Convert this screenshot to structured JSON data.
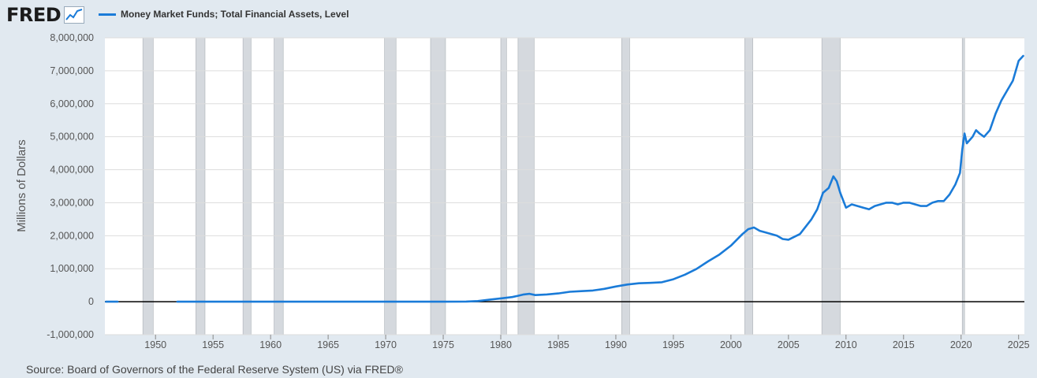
{
  "brand": {
    "logo_text": "FRED",
    "logo_icon": "line-chart-icon"
  },
  "legend": {
    "label": "Money Market Funds; Total Financial Assets, Level",
    "color": "#1a7bd8"
  },
  "source": "Source: Board of Governors of the Federal Reserve System (US) via FRED®",
  "colors": {
    "series": "#1a7bd8",
    "recession": "#d5d9de",
    "plot_bg": "#ffffff",
    "grid": "#dddddd",
    "zero_line": "#000000"
  },
  "chart_data": {
    "type": "line",
    "title": "",
    "ylabel": "Millions of Dollars",
    "xlabel": "",
    "xlim": [
      1945.6,
      2025.5
    ],
    "ylim": [
      -1000000,
      8000000
    ],
    "x_ticks": [
      1950,
      1955,
      1960,
      1965,
      1970,
      1975,
      1980,
      1985,
      1990,
      1995,
      2000,
      2005,
      2010,
      2015,
      2020,
      2025
    ],
    "x_tick_labels": [
      "1950",
      "1955",
      "1960",
      "1965",
      "1970",
      "1975",
      "1980",
      "1985",
      "1990",
      "1995",
      "2000",
      "2005",
      "2010",
      "2015",
      "2020",
      "2025"
    ],
    "y_ticks": [
      -1000000,
      0,
      1000000,
      2000000,
      3000000,
      4000000,
      5000000,
      6000000,
      7000000,
      8000000
    ],
    "y_tick_labels": [
      "-1,000,000",
      "0",
      "1,000,000",
      "2,000,000",
      "3,000,000",
      "4,000,000",
      "5,000,000",
      "6,000,000",
      "7,000,000",
      "8,000,000"
    ],
    "grid": true,
    "legend_position": "top-left",
    "recessions": [
      [
        1948.9,
        1949.8
      ],
      [
        1953.5,
        1954.3
      ],
      [
        1957.6,
        1958.3
      ],
      [
        1960.3,
        1961.1
      ],
      [
        1969.9,
        1970.9
      ],
      [
        1973.9,
        1975.2
      ],
      [
        1980.0,
        1980.5
      ],
      [
        1981.5,
        1982.9
      ],
      [
        1990.5,
        1991.2
      ],
      [
        2001.2,
        2001.9
      ],
      [
        2007.9,
        2009.5
      ],
      [
        2020.1,
        2020.3
      ]
    ],
    "series": [
      {
        "segments": [
          {
            "x": [
              1945.7,
              1946.7
            ],
            "y": [
              0,
              0
            ]
          },
          {
            "x": [
              1951.9,
              1960,
              1970,
              1975,
              1977,
              1978,
              1979,
              1980,
              1981,
              1981.5,
              1982,
              1982.5,
              1983,
              1984,
              1985,
              1986,
              1987,
              1988,
              1989,
              1990,
              1991,
              1992,
              1993,
              1994,
              1995,
              1996,
              1997,
              1998,
              1999,
              2000,
              2001,
              2001.5,
              2002,
              2002.5,
              2003,
              2004,
              2004.5,
              2005,
              2006,
              2007,
              2007.5,
              2008,
              2008.5,
              2008.9,
              2009.2,
              2009.5,
              2010,
              2010.5,
              2011,
              2011.5,
              2012,
              2012.5,
              2013,
              2013.5,
              2014,
              2014.5,
              2015,
              2015.5,
              2016,
              2016.5,
              2017,
              2017.5,
              2018,
              2018.5,
              2019,
              2019.5,
              2019.9,
              2020.1,
              2020.3,
              2020.5,
              2021,
              2021.3,
              2021.6,
              2022,
              2022.5,
              2023,
              2023.5,
              2024,
              2024.5,
              2025,
              2025.4
            ],
            "y": [
              0,
              0,
              0,
              0,
              5000,
              20000,
              60000,
              100000,
              140000,
              180000,
              220000,
              240000,
              200000,
              220000,
              250000,
              300000,
              320000,
              340000,
              390000,
              460000,
              520000,
              560000,
              570000,
              590000,
              680000,
              820000,
              990000,
              1220000,
              1430000,
              1700000,
              2050000,
              2200000,
              2250000,
              2150000,
              2100000,
              2000000,
              1900000,
              1880000,
              2050000,
              2500000,
              2800000,
              3300000,
              3450000,
              3800000,
              3650000,
              3300000,
              2850000,
              2950000,
              2900000,
              2850000,
              2800000,
              2900000,
              2950000,
              3000000,
              3000000,
              2950000,
              3000000,
              3000000,
              2950000,
              2900000,
              2900000,
              3000000,
              3050000,
              3050000,
              3250000,
              3550000,
              3900000,
              4600000,
              5100000,
              4800000,
              5000000,
              5200000,
              5100000,
              5000000,
              5200000,
              5700000,
              6100000,
              6400000,
              6700000,
              7300000,
              7450000
            ]
          }
        ]
      }
    ]
  }
}
